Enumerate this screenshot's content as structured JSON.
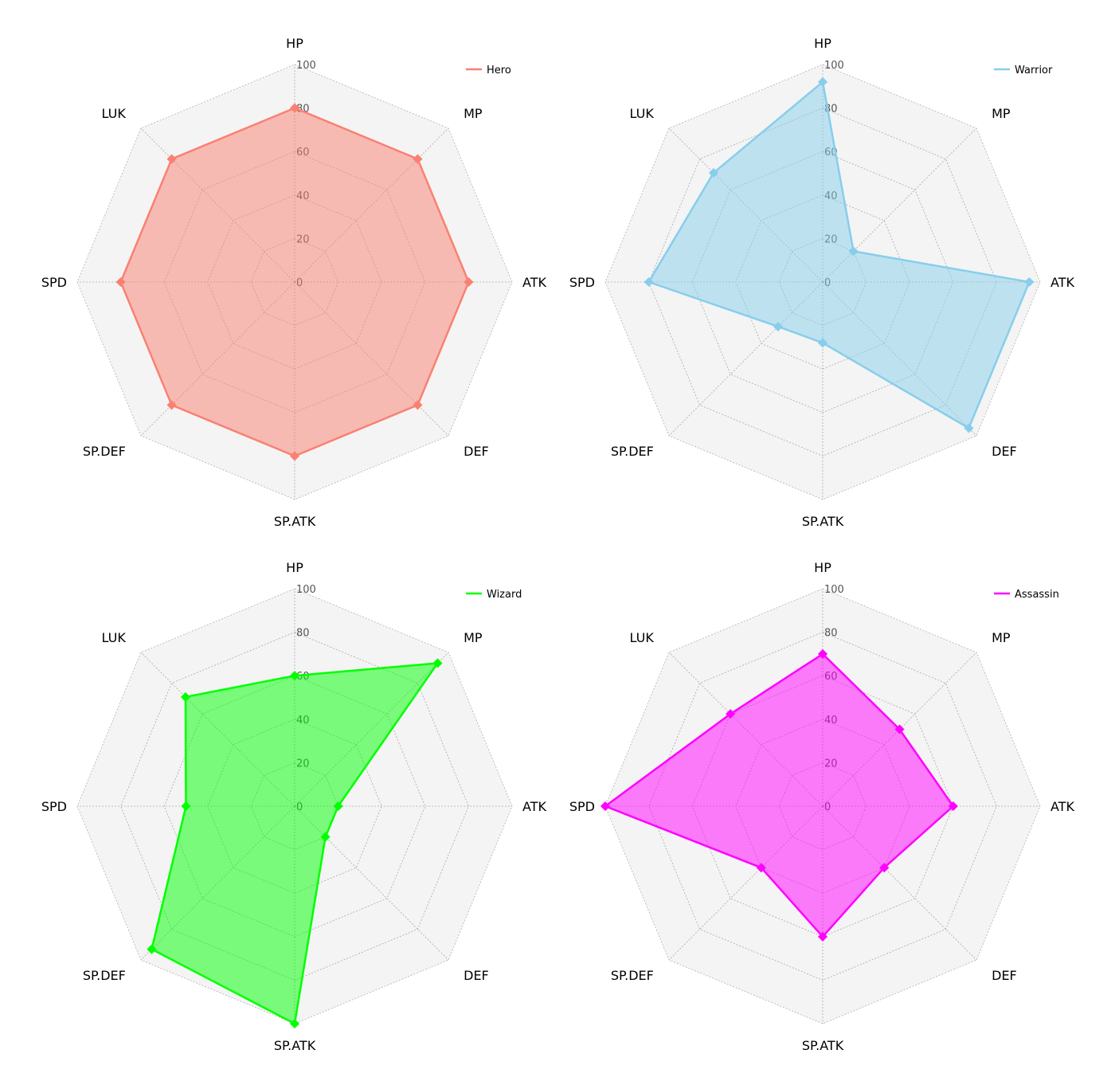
{
  "chart_data": [
    {
      "type": "radar",
      "categories": [
        "HP",
        "MP",
        "ATK",
        "DEF",
        "SP.ATK",
        "SP.DEF",
        "SPD",
        "LUK"
      ],
      "rlim": [
        0,
        100
      ],
      "r_ticks": [
        "0",
        "20",
        "40",
        "60",
        "80",
        "100"
      ],
      "grid": true,
      "legend_position": "top-right",
      "series": [
        {
          "name": "Hero",
          "color": "#FA8072",
          "values": [
            80,
            80,
            80,
            80,
            80,
            80,
            80,
            80
          ]
        }
      ]
    },
    {
      "type": "radar",
      "categories": [
        "HP",
        "MP",
        "ATK",
        "DEF",
        "SP.ATK",
        "SP.DEF",
        "SPD",
        "LUK"
      ],
      "rlim": [
        0,
        100
      ],
      "r_ticks": [
        "0",
        "20",
        "40",
        "60",
        "80",
        "100"
      ],
      "grid": true,
      "legend_position": "top-right",
      "series": [
        {
          "name": "Warrior",
          "color": "#87CEEB",
          "values": [
            92,
            20,
            95,
            95,
            28,
            29,
            80,
            71
          ]
        }
      ]
    },
    {
      "type": "radar",
      "categories": [
        "HP",
        "MP",
        "ATK",
        "DEF",
        "SP.ATK",
        "SP.DEF",
        "SPD",
        "LUK"
      ],
      "rlim": [
        0,
        100
      ],
      "r_ticks": [
        "0",
        "20",
        "40",
        "60",
        "80",
        "100"
      ],
      "grid": true,
      "legend_position": "top-right",
      "series": [
        {
          "name": "Wizard",
          "color": "#00FF00",
          "values": [
            60,
            93,
            20,
            20,
            100,
            93,
            50,
            71
          ]
        }
      ]
    },
    {
      "type": "radar",
      "categories": [
        "HP",
        "MP",
        "ATK",
        "DEF",
        "SP.ATK",
        "SP.DEF",
        "SPD",
        "LUK"
      ],
      "rlim": [
        0,
        100
      ],
      "r_ticks": [
        "0",
        "20",
        "40",
        "60",
        "80",
        "100"
      ],
      "grid": true,
      "legend_position": "top-right",
      "series": [
        {
          "name": "Assassin",
          "color": "#FF00FF",
          "values": [
            70,
            50,
            60,
            40,
            60,
            40,
            100,
            60
          ]
        }
      ]
    }
  ]
}
